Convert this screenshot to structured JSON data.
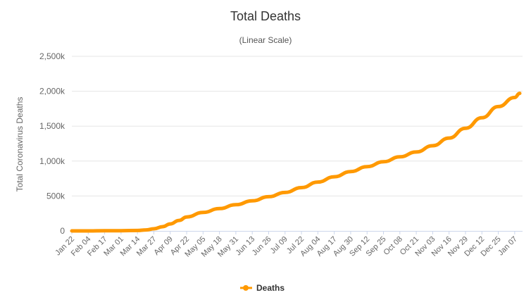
{
  "chart_data": {
    "type": "line",
    "title": "Total Deaths",
    "subtitle": "(Linear Scale)",
    "ylabel": "Total Coronavirus Deaths",
    "xlabel": "",
    "ylim": [
      0,
      2500000
    ],
    "yticks": [
      0,
      500000,
      1000000,
      1500000,
      2000000,
      2500000
    ],
    "ytick_labels": [
      "0",
      "500k",
      "1,000k",
      "1,500k",
      "2,000k",
      "2,500k"
    ],
    "grid": true,
    "legend": "bottom-center",
    "x_tick_labels": [
      "Jan 22",
      "Feb 04",
      "Feb 17",
      "Mar 01",
      "Mar 14",
      "Mar 27",
      "Apr 09",
      "Apr 22",
      "May 05",
      "May 18",
      "May 31",
      "Jun 13",
      "Jun 26",
      "Jul 09",
      "Jul 22",
      "Aug 04",
      "Aug 17",
      "Aug 30",
      "Sep 12",
      "Sep 25",
      "Oct 08",
      "Oct 21",
      "Nov 03",
      "Nov 16",
      "Nov 29",
      "Dec 12",
      "Dec 25",
      "Jan 07"
    ],
    "series": [
      {
        "name": "Deaths",
        "color": "#FF9900",
        "x": [
          "Jan 22",
          "Feb 04",
          "Feb 17",
          "Mar 01",
          "Mar 14",
          "Mar 21",
          "Mar 27",
          "Apr 03",
          "Apr 09",
          "Apr 16",
          "Apr 22",
          "May 05",
          "May 18",
          "May 31",
          "Jun 13",
          "Jun 26",
          "Jul 09",
          "Jul 22",
          "Aug 04",
          "Aug 17",
          "Aug 30",
          "Sep 12",
          "Sep 25",
          "Oct 08",
          "Oct 21",
          "Nov 03",
          "Nov 16",
          "Nov 29",
          "Dec 12",
          "Dec 25",
          "Jan 07",
          "Jan 11"
        ],
        "values": [
          20,
          490,
          1870,
          3000,
          5800,
          14000,
          30000,
          60000,
          100000,
          150000,
          200000,
          265000,
          320000,
          375000,
          430000,
          490000,
          550000,
          620000,
          700000,
          775000,
          850000,
          920000,
          990000,
          1060000,
          1130000,
          1220000,
          1330000,
          1470000,
          1620000,
          1780000,
          1910000,
          1970000
        ]
      }
    ]
  }
}
